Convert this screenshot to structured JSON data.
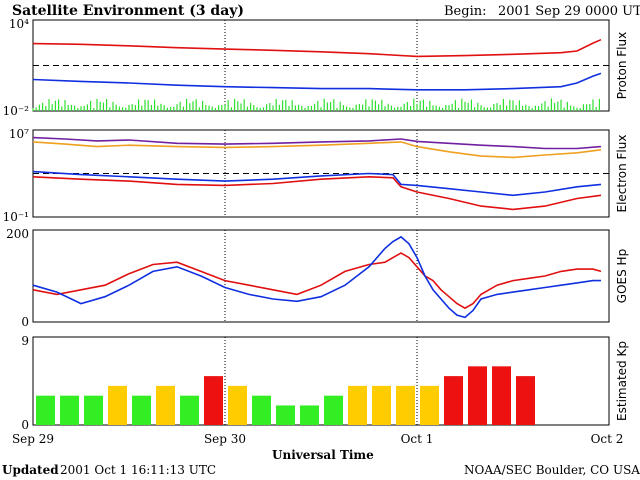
{
  "header": {
    "title": "Satellite Environment (3 day)",
    "begin_label": "Begin:",
    "begin_value": "2001 Sep 29 0000 UTC"
  },
  "footer": {
    "updated_label": "Updated",
    "updated_value": "2001 Oct  1 16:11:13 UTC",
    "credit": "NOAA/SEC Boulder, CO USA",
    "xlabel": "Universal Time"
  },
  "colors": {
    "red": "#e01010",
    "blue": "#1030e0",
    "green": "#30e030",
    "orange": "#f0a020",
    "purple": "#7020a0",
    "kp_green": "#33ee22",
    "kp_yellow": "#ffcc00",
    "kp_red": "#ee1111"
  },
  "chart_data": [
    {
      "type": "line",
      "ylabel": "Proton Flux",
      "yscale": "log",
      "ylim": [
        0.01,
        10000
      ],
      "yticks": [
        "10⁻²",
        "10⁴"
      ],
      "threshold": 10,
      "xlim_hours": [
        0,
        72
      ],
      "series": [
        {
          "color": "red",
          "values": [
            [
              0,
              280
            ],
            [
              6,
              250
            ],
            [
              12,
              200
            ],
            [
              18,
              150
            ],
            [
              24,
              120
            ],
            [
              30,
              100
            ],
            [
              36,
              80
            ],
            [
              42,
              60
            ],
            [
              48,
              40
            ],
            [
              54,
              45
            ],
            [
              60,
              55
            ],
            [
              66,
              70
            ],
            [
              68,
              90
            ],
            [
              70,
              300
            ],
            [
              71,
              500
            ]
          ]
        },
        {
          "color": "blue",
          "values": [
            [
              0,
              1.2
            ],
            [
              6,
              0.9
            ],
            [
              12,
              0.7
            ],
            [
              18,
              0.5
            ],
            [
              24,
              0.4
            ],
            [
              30,
              0.35
            ],
            [
              36,
              0.3
            ],
            [
              42,
              0.3
            ],
            [
              48,
              0.25
            ],
            [
              54,
              0.25
            ],
            [
              60,
              0.3
            ],
            [
              66,
              0.4
            ],
            [
              68,
              0.7
            ],
            [
              70,
              2
            ],
            [
              71,
              3
            ]
          ]
        },
        {
          "color": "green",
          "noisy": true,
          "values": [
            [
              0,
              0.02
            ],
            [
              71,
              0.03
            ]
          ]
        }
      ]
    },
    {
      "type": "line",
      "ylabel": "Electron Flux",
      "yscale": "log",
      "ylim": [
        0.1,
        10000000
      ],
      "yticks": [
        "10⁻¹",
        "10⁷"
      ],
      "threshold": 1000,
      "xlim_hours": [
        0,
        72
      ],
      "series": [
        {
          "color": "purple",
          "values": [
            [
              0,
              2000000.0
            ],
            [
              4,
              1500000.0
            ],
            [
              8,
              1000000.0
            ],
            [
              12,
              1200000.0
            ],
            [
              18,
              600000.0
            ],
            [
              24,
              500000.0
            ],
            [
              30,
              600000.0
            ],
            [
              36,
              800000.0
            ],
            [
              42,
              1000000.0
            ],
            [
              46,
              1500000.0
            ],
            [
              48,
              900000.0
            ],
            [
              52,
              600000.0
            ],
            [
              56,
              400000.0
            ],
            [
              60,
              300000.0
            ],
            [
              64,
              200000.0
            ],
            [
              68,
              200000.0
            ],
            [
              71,
              300000.0
            ]
          ]
        },
        {
          "color": "orange",
          "values": [
            [
              0,
              800000.0
            ],
            [
              4,
              500000.0
            ],
            [
              8,
              300000.0
            ],
            [
              12,
              400000.0
            ],
            [
              18,
              300000.0
            ],
            [
              24,
              250000.0
            ],
            [
              30,
              300000.0
            ],
            [
              36,
              400000.0
            ],
            [
              42,
              600000.0
            ],
            [
              46,
              800000.0
            ],
            [
              48,
              300000.0
            ],
            [
              52,
              100000.0
            ],
            [
              56,
              40000.0
            ],
            [
              60,
              30000.0
            ],
            [
              64,
              50000.0
            ],
            [
              68,
              80000.0
            ],
            [
              71,
              150000.0
            ]
          ]
        },
        {
          "color": "blue",
          "values": [
            [
              0,
              1500
            ],
            [
              6,
              800
            ],
            [
              12,
              500
            ],
            [
              18,
              300
            ],
            [
              24,
              200
            ],
            [
              30,
              300
            ],
            [
              36,
              600
            ],
            [
              42,
              1000
            ],
            [
              45,
              800
            ],
            [
              46,
              100
            ],
            [
              48,
              80
            ],
            [
              52,
              40
            ],
            [
              56,
              20
            ],
            [
              60,
              10
            ],
            [
              64,
              20
            ],
            [
              68,
              60
            ],
            [
              71,
              100
            ]
          ]
        },
        {
          "color": "red",
          "values": [
            [
              0,
              500
            ],
            [
              6,
              300
            ],
            [
              12,
              200
            ],
            [
              18,
              100
            ],
            [
              24,
              80
            ],
            [
              30,
              120
            ],
            [
              36,
              300
            ],
            [
              42,
              500
            ],
            [
              45,
              400
            ],
            [
              46,
              60
            ],
            [
              48,
              20
            ],
            [
              52,
              5
            ],
            [
              56,
              1
            ],
            [
              60,
              0.5
            ],
            [
              64,
              1
            ],
            [
              68,
              5
            ],
            [
              71,
              10
            ]
          ]
        }
      ]
    },
    {
      "type": "line",
      "ylabel": "GOES Hp",
      "yscale": "linear",
      "ylim": [
        0,
        200
      ],
      "yticks": [
        "0",
        "200"
      ],
      "xlim_hours": [
        0,
        72
      ],
      "series": [
        {
          "color": "red",
          "values": [
            [
              0,
              70
            ],
            [
              3,
              60
            ],
            [
              6,
              70
            ],
            [
              9,
              80
            ],
            [
              12,
              105
            ],
            [
              15,
              125
            ],
            [
              18,
              130
            ],
            [
              21,
              110
            ],
            [
              24,
              90
            ],
            [
              27,
              80
            ],
            [
              30,
              70
            ],
            [
              33,
              60
            ],
            [
              36,
              80
            ],
            [
              39,
              110
            ],
            [
              42,
              125
            ],
            [
              44,
              130
            ],
            [
              45,
              140
            ],
            [
              46,
              150
            ],
            [
              47,
              140
            ],
            [
              48,
              120
            ],
            [
              49,
              100
            ],
            [
              50,
              90
            ],
            [
              51,
              70
            ],
            [
              52,
              55
            ],
            [
              53,
              40
            ],
            [
              54,
              30
            ],
            [
              55,
              40
            ],
            [
              56,
              60
            ],
            [
              58,
              80
            ],
            [
              60,
              90
            ],
            [
              62,
              95
            ],
            [
              64,
              100
            ],
            [
              66,
              110
            ],
            [
              68,
              115
            ],
            [
              70,
              115
            ],
            [
              71,
              110
            ]
          ]
        },
        {
          "color": "blue",
          "values": [
            [
              0,
              80
            ],
            [
              3,
              65
            ],
            [
              6,
              40
            ],
            [
              9,
              55
            ],
            [
              12,
              80
            ],
            [
              15,
              110
            ],
            [
              18,
              120
            ],
            [
              21,
              100
            ],
            [
              24,
              75
            ],
            [
              27,
              60
            ],
            [
              30,
              50
            ],
            [
              33,
              45
            ],
            [
              36,
              55
            ],
            [
              39,
              80
            ],
            [
              42,
              120
            ],
            [
              44,
              160
            ],
            [
              45,
              175
            ],
            [
              46,
              185
            ],
            [
              47,
              170
            ],
            [
              48,
              140
            ],
            [
              49,
              100
            ],
            [
              50,
              70
            ],
            [
              51,
              50
            ],
            [
              52,
              30
            ],
            [
              53,
              15
            ],
            [
              54,
              10
            ],
            [
              55,
              25
            ],
            [
              56,
              50
            ],
            [
              58,
              60
            ],
            [
              60,
              65
            ],
            [
              62,
              70
            ],
            [
              64,
              75
            ],
            [
              66,
              80
            ],
            [
              68,
              85
            ],
            [
              70,
              90
            ],
            [
              71,
              90
            ]
          ]
        }
      ]
    },
    {
      "type": "bar",
      "ylabel": "Estimated Kp",
      "ylim": [
        0,
        9
      ],
      "yticks": [
        "0",
        "9"
      ],
      "bar_hours": 3,
      "values": [
        3,
        3,
        3,
        4,
        3,
        4,
        3,
        5,
        4,
        3,
        2,
        2,
        3,
        4,
        4,
        4,
        4,
        5,
        6,
        6,
        5
      ],
      "bar_colors": [
        "green",
        "green",
        "green",
        "yellow",
        "green",
        "yellow",
        "green",
        "red",
        "yellow",
        "green",
        "green",
        "green",
        "green",
        "yellow",
        "yellow",
        "yellow",
        "yellow",
        "red",
        "red",
        "red",
        "red"
      ]
    }
  ],
  "xaxis": {
    "ticks": [
      "Sep 29",
      "Sep 30",
      "Oct 1",
      "Oct 2"
    ]
  }
}
